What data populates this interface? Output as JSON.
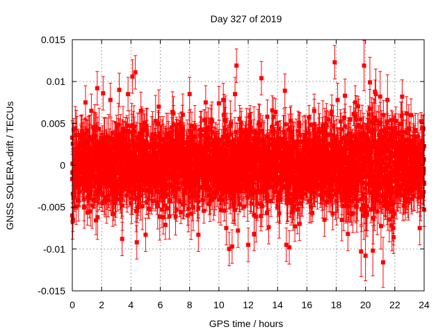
{
  "chart_data": {
    "type": "scatter",
    "title": "Day 327 of 2019",
    "xlabel": "GPS time / hours",
    "ylabel": "GNSS SOLERA-drift / TECUs",
    "xlim": [
      0,
      24
    ],
    "ylim": [
      -0.015,
      0.015
    ],
    "xticks": [
      0,
      2,
      4,
      6,
      8,
      10,
      12,
      14,
      16,
      18,
      20,
      22,
      24
    ],
    "xtick_labels": [
      "0",
      "2",
      "4",
      "6",
      "8",
      "10",
      "12",
      "14",
      "16",
      "18",
      "20",
      "22",
      "24"
    ],
    "yticks": [
      -0.015,
      -0.01,
      -0.005,
      0,
      0.005,
      0.01,
      0.015
    ],
    "ytick_labels": [
      "-0.015",
      "-0.01",
      "-0.005",
      "0",
      "0.005",
      "0.01",
      "0.015"
    ],
    "grid": true,
    "series_color": "#ff0000",
    "series": [
      {
        "name": "SOLERA-drift",
        "marker": "square",
        "error_bars": true,
        "description": "Dense red markers with vertical error bars scattered around 0 across the full day; typical spread about ±0.005 TECUs, error bar half-widths roughly 0.001–0.003.",
        "points": [
          [
            0.0,
            -0.006,
            0.001
          ],
          [
            0.0,
            0.0033,
            0.002
          ],
          [
            0.9,
            0.0075,
            0.002
          ],
          [
            1.3,
            0.0065,
            0.002
          ],
          [
            1.7,
            0.0092,
            0.002
          ],
          [
            2.1,
            0.0086,
            0.002
          ],
          [
            2.6,
            0.0078,
            0.002
          ],
          [
            3.2,
            0.009,
            0.002
          ],
          [
            3.4,
            -0.0088,
            0.002
          ],
          [
            3.8,
            0.0085,
            0.002
          ],
          [
            4.1,
            0.0106,
            0.002
          ],
          [
            4.3,
            0.0111,
            0.002
          ],
          [
            4.4,
            -0.0092,
            0.002
          ],
          [
            5.0,
            -0.0083,
            0.002
          ],
          [
            5.9,
            0.007,
            0.002
          ],
          [
            6.2,
            -0.0062,
            0.002
          ],
          [
            6.9,
            0.0062,
            0.002
          ],
          [
            8.0,
            0.0085,
            0.002
          ],
          [
            8.6,
            -0.0083,
            0.002
          ],
          [
            9.1,
            0.0075,
            0.002
          ],
          [
            10.0,
            0.0074,
            0.002
          ],
          [
            10.3,
            0.0078,
            0.002
          ],
          [
            10.5,
            -0.0075,
            0.002
          ],
          [
            10.7,
            -0.01,
            0.002
          ],
          [
            10.9,
            -0.0097,
            0.002
          ],
          [
            11.1,
            0.0085,
            0.002
          ],
          [
            11.2,
            0.0119,
            0.002
          ],
          [
            11.3,
            -0.0078,
            0.002
          ],
          [
            12.0,
            -0.0095,
            0.002
          ],
          [
            12.4,
            -0.0082,
            0.002
          ],
          [
            12.9,
            0.0104,
            0.002
          ],
          [
            13.3,
            0.0058,
            0.002
          ],
          [
            13.4,
            -0.0074,
            0.002
          ],
          [
            14.5,
            0.0089,
            0.002
          ],
          [
            14.6,
            -0.0095,
            0.002
          ],
          [
            14.8,
            -0.0098,
            0.002
          ],
          [
            15.5,
            -0.007,
            0.002
          ],
          [
            16.5,
            0.0065,
            0.002
          ],
          [
            17.2,
            -0.0065,
            0.002
          ],
          [
            17.7,
            0.0064,
            0.002
          ],
          [
            17.9,
            0.0123,
            0.002
          ],
          [
            18.1,
            0.0078,
            0.002
          ],
          [
            18.6,
            0.0083,
            0.002
          ],
          [
            18.8,
            -0.0082,
            0.002
          ],
          [
            19.3,
            0.0075,
            0.002
          ],
          [
            19.7,
            -0.0103,
            0.003
          ],
          [
            19.9,
            0.0119,
            0.003
          ],
          [
            20.0,
            -0.0108,
            0.003
          ],
          [
            20.3,
            0.0099,
            0.003
          ],
          [
            20.5,
            -0.0102,
            0.003
          ],
          [
            20.7,
            0.0085,
            0.003
          ],
          [
            21.0,
            0.0082,
            0.003
          ],
          [
            21.2,
            -0.0116,
            0.003
          ],
          [
            21.5,
            0.0078,
            0.003
          ],
          [
            21.9,
            -0.0075,
            0.002
          ],
          [
            22.5,
            0.0082,
            0.002
          ],
          [
            22.8,
            0.0062,
            0.002
          ],
          [
            23.4,
            0.0042,
            0.002
          ],
          [
            23.7,
            -0.0075,
            0.002
          ],
          [
            24.0,
            -0.0053,
            0.002
          ],
          [
            24.0,
            -0.0022,
            0.002
          ]
        ]
      }
    ]
  }
}
